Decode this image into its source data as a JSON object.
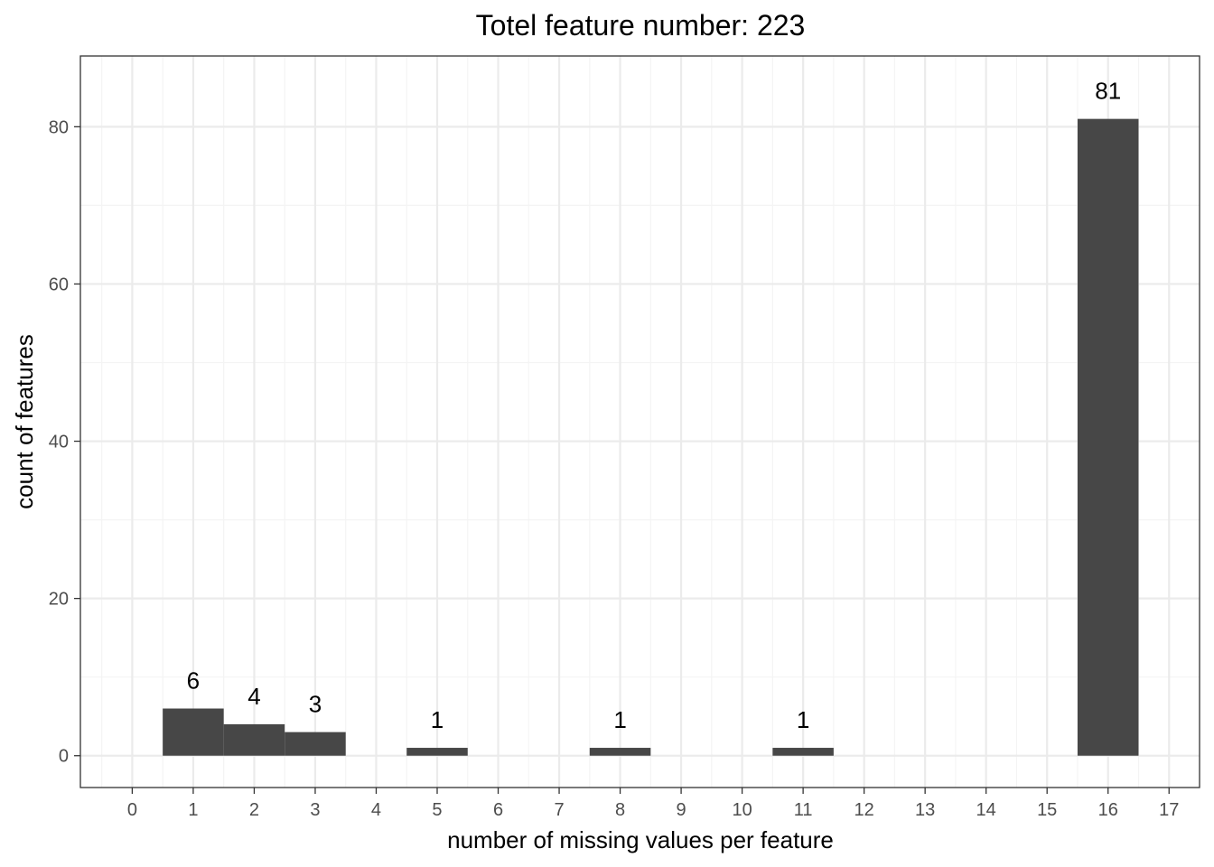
{
  "chart_data": {
    "type": "bar",
    "title": "Totel feature number: 223",
    "xlabel": "number of missing values per feature",
    "ylabel": "count of features",
    "x_ticks": [
      "0",
      "1",
      "2",
      "3",
      "4",
      "5",
      "6",
      "7",
      "8",
      "9",
      "10",
      "11",
      "12",
      "13",
      "14",
      "15",
      "16",
      "17"
    ],
    "y_ticks": [
      "0",
      "20",
      "40",
      "60",
      "80"
    ],
    "xlim": [
      -0.85,
      17.5
    ],
    "ylim": [
      -4.05,
      89.0
    ],
    "bar_width": 1,
    "bars": [
      {
        "x": 1,
        "value": 6,
        "label": "6"
      },
      {
        "x": 2,
        "value": 4,
        "label": "4"
      },
      {
        "x": 3,
        "value": 3,
        "label": "3"
      },
      {
        "x": 5,
        "value": 1,
        "label": "1"
      },
      {
        "x": 8,
        "value": 1,
        "label": "1"
      },
      {
        "x": 11,
        "value": 1,
        "label": "1"
      },
      {
        "x": 16,
        "value": 81,
        "label": "81"
      }
    ],
    "grid": true,
    "bar_color": "#474747",
    "grid_major_color": "#ebebeb",
    "grid_minor_color": "#f4f4f4",
    "panel_border_color": "#333333"
  }
}
